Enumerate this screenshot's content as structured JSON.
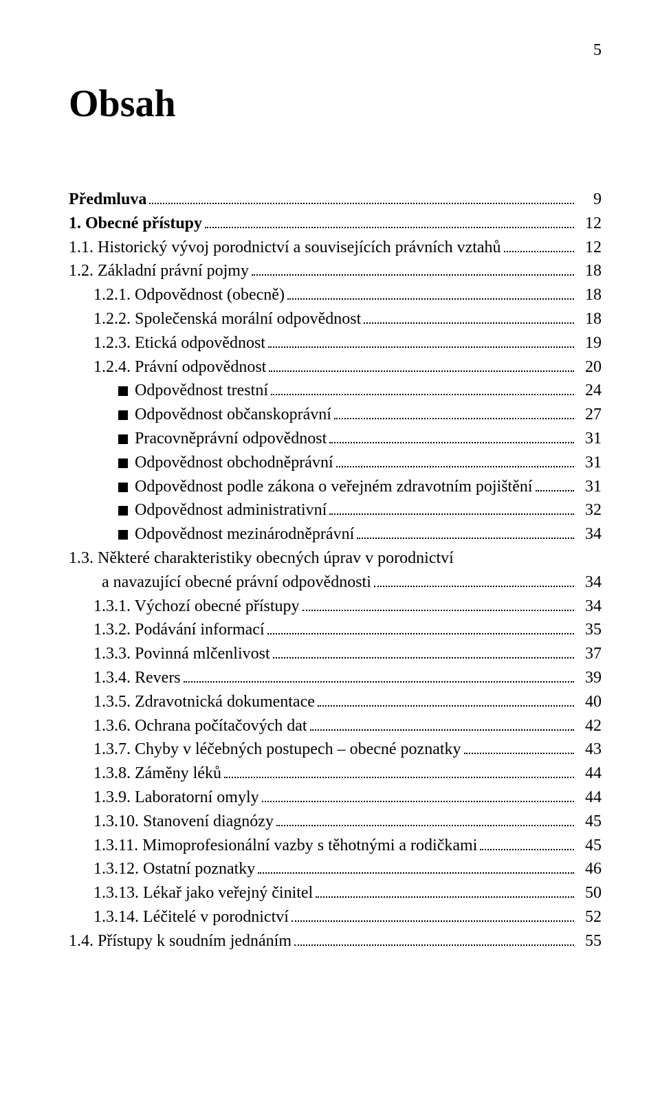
{
  "page": {
    "number": "5"
  },
  "title": "Obsah",
  "toc": [
    {
      "label": "Předmluva",
      "page": "9",
      "bold": true,
      "indent": 0,
      "bullet": false
    },
    {
      "label": "1. Obecné přístupy",
      "page": "12",
      "bold": true,
      "indent": 0,
      "bullet": false
    },
    {
      "label": "1.1. Historický vývoj porodnictví a souvisejících právních vztahů",
      "page": "12",
      "bold": false,
      "indent": 0,
      "bullet": false
    },
    {
      "label": "1.2. Základní právní pojmy",
      "page": "18",
      "bold": false,
      "indent": 0,
      "bullet": false
    },
    {
      "label": "1.2.1. Odpovědnost (obecně)",
      "page": "18",
      "bold": false,
      "indent": 1,
      "bullet": false
    },
    {
      "label": "1.2.2. Společenská morální odpovědnost",
      "page": "18",
      "bold": false,
      "indent": 1,
      "bullet": false
    },
    {
      "label": "1.2.3. Etická odpovědnost",
      "page": "19",
      "bold": false,
      "indent": 1,
      "bullet": false
    },
    {
      "label": "1.2.4. Právní odpovědnost",
      "page": "20",
      "bold": false,
      "indent": 1,
      "bullet": false
    },
    {
      "label": "Odpovědnost trestní",
      "page": "24",
      "bold": false,
      "indent": 2,
      "bullet": true
    },
    {
      "label": "Odpovědnost občanskoprávní",
      "page": "27",
      "bold": false,
      "indent": 2,
      "bullet": true
    },
    {
      "label": "Pracovněprávní odpovědnost",
      "page": "31",
      "bold": false,
      "indent": 2,
      "bullet": true
    },
    {
      "label": "Odpovědnost obchodněprávní",
      "page": "31",
      "bold": false,
      "indent": 2,
      "bullet": true
    },
    {
      "label": "Odpovědnost podle zákona o veřejném zdravotním pojištění",
      "page": "31",
      "bold": false,
      "indent": 2,
      "bullet": true
    },
    {
      "label": "Odpovědnost administrativní",
      "page": "32",
      "bold": false,
      "indent": 2,
      "bullet": true
    },
    {
      "label": "Odpovědnost mezinárodněprávní",
      "page": "34",
      "bold": false,
      "indent": 2,
      "bullet": true
    },
    {
      "type": "multiline",
      "line1": "1.3. Některé charakteristiky obecných úprav v porodnictví",
      "line2_indent": "        ",
      "line2": "a navazující obecné právní odpovědnosti",
      "page": "34",
      "bold": false,
      "indent": 0
    },
    {
      "label": "1.3.1. Výchozí obecné přístupy",
      "page": "34",
      "bold": false,
      "indent": 1,
      "bullet": false
    },
    {
      "label": "1.3.2. Podávání informací",
      "page": "35",
      "bold": false,
      "indent": 1,
      "bullet": false
    },
    {
      "label": "1.3.3. Povinná mlčenlivost",
      "page": "37",
      "bold": false,
      "indent": 1,
      "bullet": false
    },
    {
      "label": "1.3.4. Revers",
      "page": "39",
      "bold": false,
      "indent": 1,
      "bullet": false
    },
    {
      "label": "1.3.5. Zdravotnická dokumentace",
      "page": "40",
      "bold": false,
      "indent": 1,
      "bullet": false
    },
    {
      "label": "1.3.6. Ochrana počítačových dat",
      "page": "42",
      "bold": false,
      "indent": 1,
      "bullet": false
    },
    {
      "label": "1.3.7. Chyby v léčebných postupech – obecné poznatky",
      "page": "43",
      "bold": false,
      "indent": 1,
      "bullet": false
    },
    {
      "label": "1.3.8. Záměny léků",
      "page": "44",
      "bold": false,
      "indent": 1,
      "bullet": false
    },
    {
      "label": "1.3.9. Laboratorní omyly",
      "page": "44",
      "bold": false,
      "indent": 1,
      "bullet": false
    },
    {
      "label": "1.3.10. Stanovení diagnózy",
      "page": "45",
      "bold": false,
      "indent": 1,
      "bullet": false
    },
    {
      "label": "1.3.11. Mimoprofesionální vazby s těhotnými a rodičkami",
      "page": "45",
      "bold": false,
      "indent": 1,
      "bullet": false
    },
    {
      "label": "1.3.12. Ostatní poznatky",
      "page": "46",
      "bold": false,
      "indent": 1,
      "bullet": false
    },
    {
      "label": "1.3.13. Lékař jako veřejný činitel",
      "page": "50",
      "bold": false,
      "indent": 1,
      "bullet": false
    },
    {
      "label": "1.3.14. Léčitelé v porodnictví",
      "page": "52",
      "bold": false,
      "indent": 1,
      "bullet": false
    },
    {
      "label": "1.4. Přístupy k soudním jednáním",
      "page": "55",
      "bold": false,
      "indent": 0,
      "bullet": false
    }
  ]
}
